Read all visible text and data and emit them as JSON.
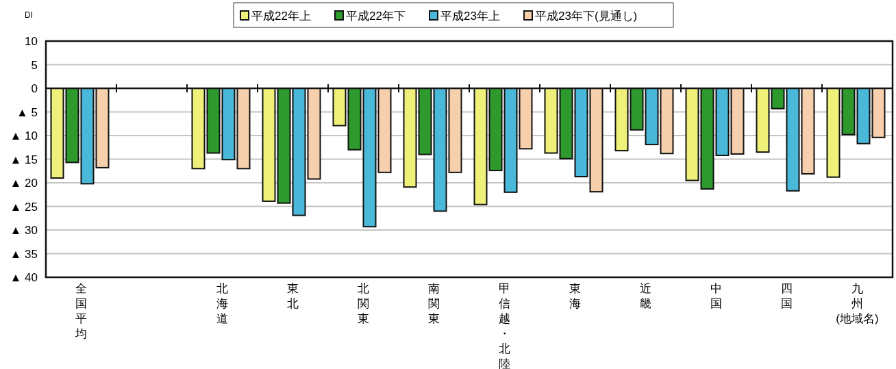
{
  "chart_data": {
    "type": "bar",
    "ylabel": "DI",
    "xlabel": "(地域名)",
    "categories": [
      "全国平均",
      null,
      "北海道",
      "東北",
      "北関東",
      "南関東",
      "甲信越・北陸",
      "東海",
      "近畿",
      "中国",
      "四国",
      "九州"
    ],
    "series": [
      {
        "name": "平成22年上",
        "color": "#eef07a",
        "values": [
          -19,
          null,
          -17,
          -23.9,
          -7.9,
          -20.9,
          -24.6,
          -13.7,
          -13.2,
          -19.5,
          -13.5,
          -18.8
        ]
      },
      {
        "name": "平成22年下",
        "color": "#2e9a2e",
        "values": [
          -15.7,
          null,
          -13.7,
          -24.3,
          -13,
          -14,
          -17.4,
          -14.9,
          -8.8,
          -21.3,
          -4.3,
          -9.8
        ]
      },
      {
        "name": "平成23年上",
        "color": "#4ab8d8",
        "values": [
          -20.2,
          null,
          -15.1,
          -26.9,
          -29.3,
          -26,
          -22,
          -18.7,
          -11.9,
          -14.2,
          -21.7,
          -11.7
        ]
      },
      {
        "name": "平成23年下(見通し)",
        "color": "#f6d0ac",
        "values": [
          -16.8,
          null,
          -17,
          -19.2,
          -17.8,
          -17.8,
          -12.8,
          -21.9,
          -13.8,
          -13.9,
          -18.1,
          -10.4
        ]
      }
    ],
    "ylim": [
      -40,
      10
    ],
    "yticks": [
      10,
      5,
      0,
      {
        "value": -5,
        "label": "▲ 5"
      },
      {
        "value": -10,
        "label": "▲ 10"
      },
      {
        "value": -15,
        "label": "▲ 15"
      },
      {
        "value": -20,
        "label": "▲ 20"
      },
      {
        "value": -25,
        "label": "▲ 25"
      },
      {
        "value": -30,
        "label": "▲ 30"
      },
      {
        "value": -35,
        "label": "▲ 35"
      },
      {
        "value": -40,
        "label": "▲ 40"
      }
    ],
    "grid": "y",
    "legend": "top"
  }
}
